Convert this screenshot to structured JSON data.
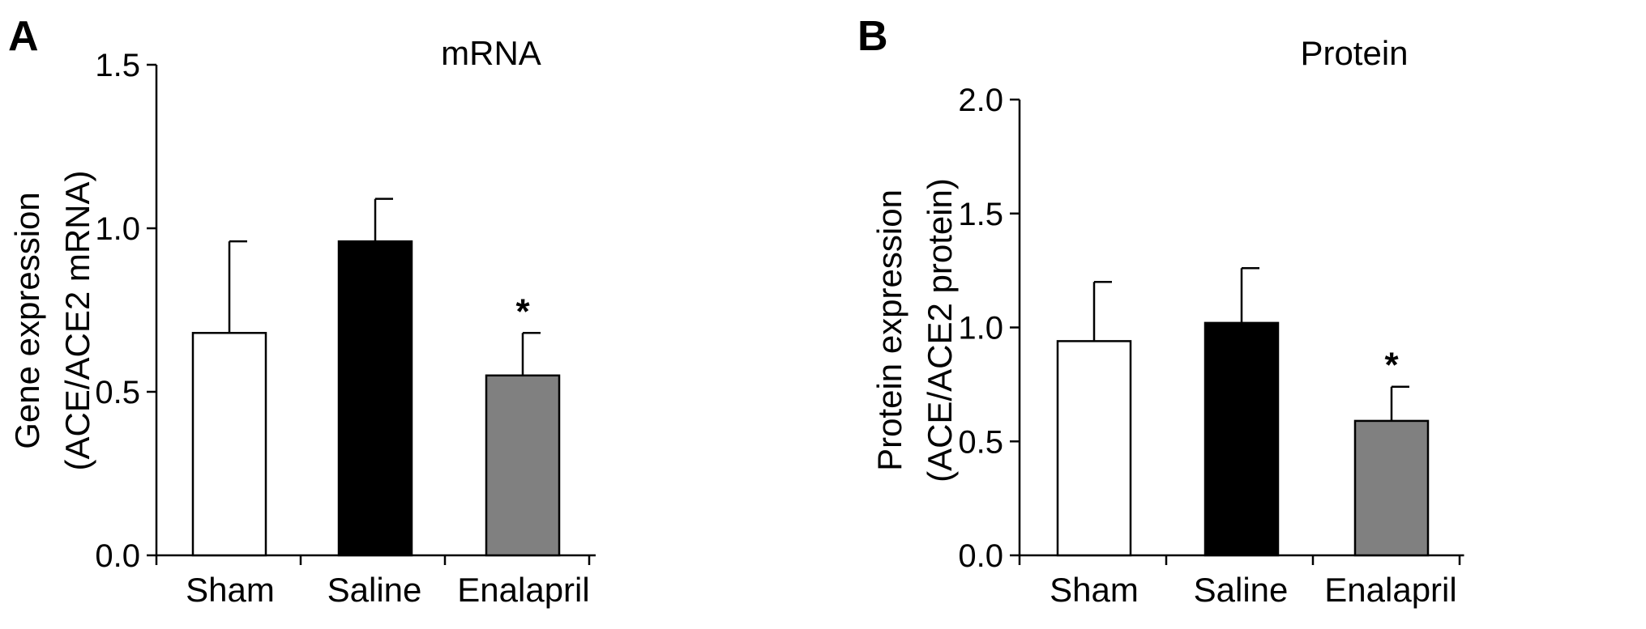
{
  "chart_data": [
    {
      "panel": "A",
      "type": "bar",
      "title": "mRNA",
      "ylabel_line1": "Gene expression",
      "ylabel_line2": "(ACE/ACE2 mRNA)",
      "categories": [
        "Sham",
        "Saline",
        "Enalapril"
      ],
      "values": [
        0.68,
        0.96,
        0.55
      ],
      "errors": [
        0.28,
        0.13,
        0.13
      ],
      "colors": [
        "#ffffff",
        "#000000",
        "#808080"
      ],
      "significance": [
        "",
        "",
        "*"
      ],
      "ylim": [
        0.0,
        1.5
      ],
      "yticks": [
        0.0,
        0.5,
        1.0,
        1.5
      ],
      "ytick_labels": [
        "0.0",
        "0.5",
        "1.0",
        "1.5"
      ],
      "grid": false,
      "legend": "none"
    },
    {
      "panel": "B",
      "type": "bar",
      "title": "Protein",
      "ylabel_line1": "Protein expression",
      "ylabel_line2": "(ACE/ACE2 protein)",
      "categories": [
        "Sham",
        "Saline",
        "Enalapril"
      ],
      "values": [
        0.94,
        1.02,
        0.59
      ],
      "errors": [
        0.26,
        0.24,
        0.15
      ],
      "colors": [
        "#ffffff",
        "#000000",
        "#808080"
      ],
      "significance": [
        "",
        "",
        "*"
      ],
      "ylim": [
        0.0,
        2.0
      ],
      "yticks": [
        0.0,
        0.5,
        1.0,
        1.5,
        2.0
      ],
      "ytick_labels": [
        "0.0",
        "0.5",
        "1.0",
        "1.5",
        "2.0"
      ],
      "grid": false,
      "legend": "none"
    }
  ]
}
